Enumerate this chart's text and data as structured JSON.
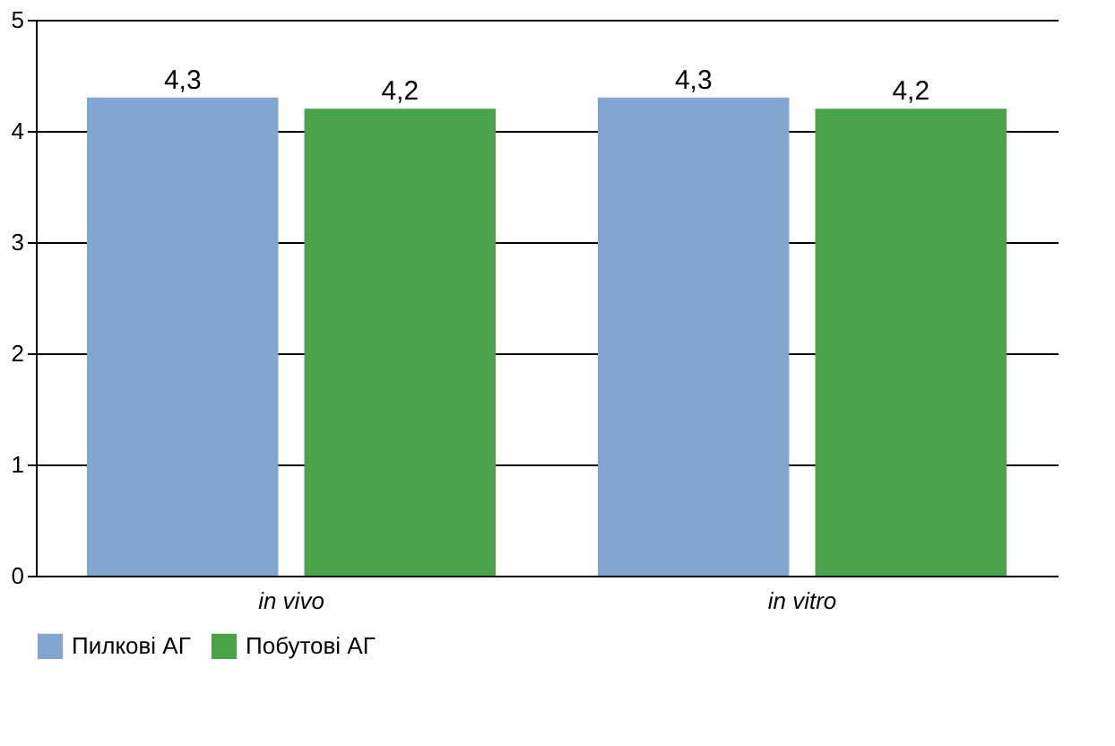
{
  "chart_data": {
    "type": "bar",
    "categories": [
      "in vivo",
      "in vitro"
    ],
    "series": [
      {
        "name": "Пилкові АГ",
        "color": "#82a6d0",
        "values": [
          4.3,
          4.3
        ],
        "value_labels": [
          "4,3",
          "4,3"
        ]
      },
      {
        "name": "Побутові АГ",
        "color": "#4aa24a",
        "values": [
          4.2,
          4.2
        ],
        "value_labels": [
          "4,2",
          "4,2"
        ]
      }
    ],
    "ylim": [
      0,
      5
    ],
    "yticks": [
      0,
      1,
      2,
      3,
      4,
      5
    ],
    "grid": "y",
    "legend": "bottom left"
  }
}
